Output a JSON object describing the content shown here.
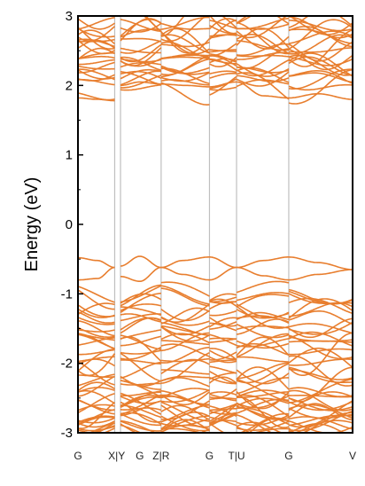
{
  "chart_data": {
    "type": "line",
    "title": "",
    "ylabel": "Energy (eV)",
    "ylim": [
      -3,
      3
    ],
    "yticks": [
      -3,
      -2,
      -1,
      0,
      1,
      2,
      3
    ],
    "xlim": [
      0,
      7.1
    ],
    "kpoints": [
      {
        "label": "G",
        "x": 0.0
      },
      {
        "label": "X|Y",
        "x": 1.0
      },
      {
        "label": "G",
        "x": 1.6
      },
      {
        "label": "Z|R",
        "x": 2.15
      },
      {
        "label": "G",
        "x": 3.4
      },
      {
        "label": "T|U",
        "x": 4.1
      },
      {
        "label": "G",
        "x": 5.45
      },
      {
        "label": "V",
        "x": 7.1
      }
    ],
    "vlines": [
      0.95,
      1.1,
      2.15,
      3.4,
      4.1,
      5.45
    ],
    "colors": {
      "bands": "#E87E2E",
      "vlines": "#BFBFBF",
      "axis": "#000000"
    },
    "valence_top": {
      "name": "",
      "x": [
        0.0,
        0.5,
        0.95,
        1.1,
        1.6,
        2.15,
        2.7,
        3.4,
        4.1,
        4.8,
        5.45,
        6.2,
        7.1
      ],
      "upper": [
        -0.48,
        -0.52,
        -0.62,
        -0.6,
        -0.46,
        -0.62,
        -0.52,
        -0.47,
        -0.62,
        -0.52,
        -0.47,
        -0.55,
        -0.65
      ],
      "lower": [
        -0.8,
        -0.78,
        -0.62,
        -0.75,
        -0.82,
        -0.62,
        -0.72,
        -0.8,
        -0.62,
        -0.74,
        -0.8,
        -0.72,
        -0.65
      ]
    },
    "conduction_bottom": {
      "x": [
        0.0,
        0.5,
        0.95,
        1.1,
        1.6,
        2.15,
        2.8,
        3.4,
        4.1,
        4.8,
        5.45,
        6.2,
        7.1
      ],
      "y": [
        1.82,
        1.8,
        1.78,
        2.0,
        2.05,
        2.02,
        2.0,
        1.98,
        2.05,
        1.85,
        1.82,
        1.88,
        1.8
      ]
    }
  }
}
